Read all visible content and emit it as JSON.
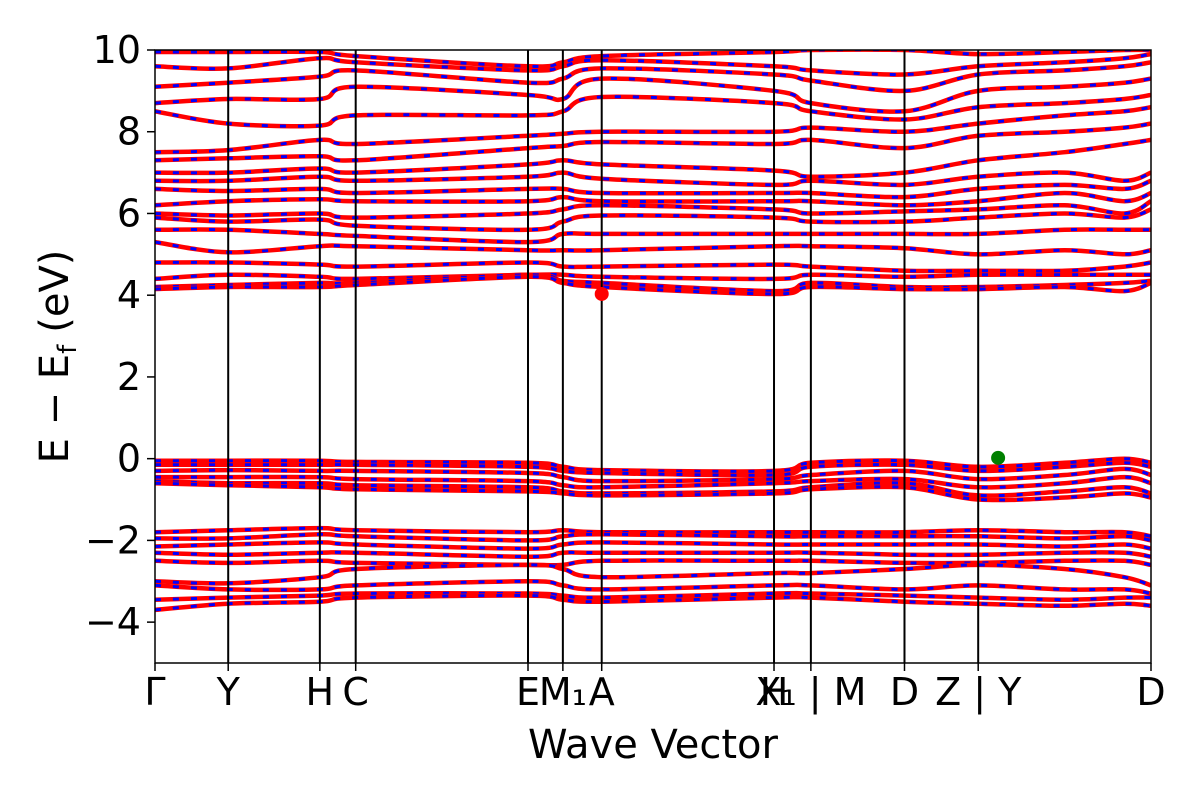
{
  "chart_data": {
    "type": "line",
    "xlabel": "Wave Vector",
    "ylabel_main": "E − E",
    "ylabel_sub": "f",
    "ylabel_unit": "(eV)",
    "ylim": [
      -5,
      10
    ],
    "yticks": [
      -4,
      -2,
      0,
      2,
      4,
      6,
      8,
      10
    ],
    "ytick_labels": [
      "−4",
      "−2",
      "0",
      "2",
      "4",
      "6",
      "8",
      "10"
    ],
    "xlim": [
      0,
      1
    ],
    "kpoints": [
      {
        "label": "Γ",
        "x": 0.0
      },
      {
        "label": "Y",
        "x": 0.0735
      },
      {
        "label": "H",
        "x": 0.1655
      },
      {
        "label": "C",
        "x": 0.2015
      },
      {
        "label": "E",
        "x": 0.3745
      },
      {
        "label": "M₁",
        "x": 0.4095
      },
      {
        "label": "A",
        "x": 0.4485
      },
      {
        "label": "H",
        "x": 0.6215
      },
      {
        "label": "X₁ | M",
        "x": 0.6585
      },
      {
        "label": "D",
        "x": 0.7525
      },
      {
        "label": "Z | Y",
        "x": 0.8265
      },
      {
        "label": "D",
        "x": 1.0
      }
    ],
    "series_colors": {
      "up": "#ff0000",
      "down": "#0000ff"
    },
    "markers": [
      {
        "x": 0.4485,
        "y": 4.03,
        "color": "#ff0000"
      },
      {
        "x": 0.8465,
        "y": 0.02,
        "color": "#008000"
      }
    ],
    "bands": [
      [
        9.95,
        9.95,
        9.95,
        9.85,
        9.6,
        9.7,
        9.85,
        9.95,
        10.0,
        10.0,
        9.9,
        9.95,
        10.0,
        10.0
      ],
      [
        9.6,
        9.55,
        9.8,
        9.7,
        9.5,
        9.6,
        9.75,
        9.6,
        9.5,
        9.4,
        9.6,
        9.7,
        9.8,
        9.9
      ],
      [
        9.1,
        9.2,
        9.35,
        9.5,
        9.2,
        9.3,
        9.55,
        9.4,
        9.25,
        9.0,
        9.4,
        9.5,
        9.6,
        9.7
      ],
      [
        8.7,
        8.8,
        8.8,
        9.1,
        8.9,
        8.8,
        9.3,
        9.0,
        8.7,
        8.5,
        9.0,
        9.1,
        9.2,
        9.3
      ],
      [
        8.5,
        8.2,
        8.15,
        8.4,
        8.4,
        8.5,
        8.85,
        8.7,
        8.5,
        8.3,
        8.6,
        8.7,
        8.8,
        8.9
      ],
      [
        7.5,
        7.55,
        7.8,
        7.7,
        7.9,
        7.95,
        8.0,
        8.0,
        8.1,
        8.0,
        8.2,
        8.4,
        8.5,
        8.6
      ],
      [
        7.3,
        7.35,
        7.4,
        7.3,
        7.6,
        7.65,
        7.75,
        7.7,
        7.8,
        7.6,
        7.9,
        8.0,
        8.1,
        8.2
      ],
      [
        7.0,
        7.0,
        7.1,
        7.0,
        7.2,
        7.3,
        7.2,
        7.05,
        6.9,
        7.0,
        7.3,
        7.5,
        7.7,
        7.8
      ],
      [
        6.8,
        6.8,
        6.9,
        6.8,
        6.9,
        7.0,
        6.85,
        6.7,
        6.8,
        6.7,
        6.9,
        7.0,
        6.8,
        7.0
      ],
      [
        6.6,
        6.55,
        6.6,
        6.5,
        6.6,
        6.6,
        6.5,
        6.5,
        6.5,
        6.4,
        6.6,
        6.7,
        6.6,
        6.8
      ],
      [
        6.2,
        6.3,
        6.35,
        6.3,
        6.3,
        6.4,
        6.3,
        6.3,
        6.3,
        6.2,
        6.3,
        6.5,
        6.3,
        6.5
      ],
      [
        6.0,
        5.95,
        6.0,
        5.9,
        6.0,
        6.1,
        6.2,
        6.1,
        6.0,
        6.05,
        6.1,
        6.2,
        6.0,
        6.3
      ],
      [
        5.9,
        5.8,
        5.85,
        5.7,
        5.6,
        5.8,
        5.95,
        5.9,
        5.8,
        5.8,
        5.9,
        6.0,
        5.9,
        6.1
      ],
      [
        5.6,
        5.6,
        5.5,
        5.45,
        5.3,
        5.5,
        5.5,
        5.5,
        5.5,
        5.5,
        5.5,
        5.6,
        5.6,
        5.6
      ],
      [
        5.3,
        5.05,
        5.2,
        5.2,
        5.1,
        5.1,
        5.1,
        5.2,
        5.2,
        5.15,
        5.0,
        5.1,
        5.0,
        5.1
      ],
      [
        4.8,
        4.8,
        4.75,
        4.7,
        4.8,
        4.7,
        4.7,
        4.75,
        4.7,
        4.6,
        4.6,
        4.6,
        4.7,
        4.8
      ],
      [
        4.4,
        4.5,
        4.45,
        4.4,
        4.5,
        4.5,
        4.45,
        4.4,
        4.5,
        4.45,
        4.5,
        4.5,
        4.5,
        4.5
      ],
      [
        4.2,
        4.25,
        4.3,
        4.3,
        4.5,
        4.35,
        4.3,
        4.1,
        4.3,
        4.2,
        4.2,
        4.25,
        4.3,
        4.35
      ],
      [
        4.15,
        4.2,
        4.2,
        4.25,
        4.45,
        4.3,
        4.2,
        4.03,
        4.2,
        4.15,
        4.15,
        4.2,
        4.1,
        4.3
      ],
      [
        -0.05,
        -0.05,
        -0.05,
        -0.08,
        -0.1,
        -0.2,
        -0.28,
        -0.3,
        -0.1,
        -0.05,
        -0.2,
        -0.1,
        -0.0,
        -0.1
      ],
      [
        -0.15,
        -0.15,
        -0.15,
        -0.15,
        -0.2,
        -0.3,
        -0.35,
        -0.4,
        -0.2,
        -0.15,
        -0.3,
        -0.2,
        -0.1,
        -0.2
      ],
      [
        -0.3,
        -0.28,
        -0.3,
        -0.3,
        -0.35,
        -0.45,
        -0.55,
        -0.5,
        -0.4,
        -0.3,
        -0.5,
        -0.4,
        -0.25,
        -0.4
      ],
      [
        -0.45,
        -0.45,
        -0.45,
        -0.5,
        -0.55,
        -0.65,
        -0.7,
        -0.6,
        -0.55,
        -0.5,
        -0.7,
        -0.6,
        -0.45,
        -0.6
      ],
      [
        -0.55,
        -0.6,
        -0.6,
        -0.65,
        -0.7,
        -0.8,
        -0.85,
        -0.8,
        -0.7,
        -0.6,
        -0.9,
        -0.8,
        -0.7,
        -0.85
      ],
      [
        -0.6,
        -0.65,
        -0.7,
        -0.75,
        -0.8,
        -0.85,
        -0.9,
        -0.85,
        -0.75,
        -0.7,
        -1.0,
        -0.95,
        -0.85,
        -0.95
      ],
      [
        -1.8,
        -1.75,
        -1.7,
        -1.75,
        -1.8,
        -1.75,
        -1.8,
        -1.8,
        -1.8,
        -1.8,
        -1.75,
        -1.8,
        -1.8,
        -1.9
      ],
      [
        -1.95,
        -1.95,
        -1.85,
        -1.9,
        -2.0,
        -1.9,
        -1.85,
        -1.9,
        -1.9,
        -1.9,
        -1.9,
        -1.95,
        -1.9,
        -2.0
      ],
      [
        -2.15,
        -2.1,
        -2.05,
        -2.1,
        -2.2,
        -2.1,
        -2.05,
        -2.1,
        -2.1,
        -2.1,
        -2.1,
        -2.15,
        -2.1,
        -2.2
      ],
      [
        -2.3,
        -2.35,
        -2.3,
        -2.3,
        -2.4,
        -2.3,
        -2.3,
        -2.3,
        -2.3,
        -2.35,
        -2.35,
        -2.3,
        -2.3,
        -2.4
      ],
      [
        -2.5,
        -2.55,
        -2.5,
        -2.55,
        -2.6,
        -2.6,
        -2.5,
        -2.5,
        -2.5,
        -2.55,
        -2.55,
        -2.5,
        -2.5,
        -2.6
      ],
      [
        -3.0,
        -3.05,
        -2.9,
        -2.7,
        -2.6,
        -2.7,
        -2.9,
        -2.8,
        -2.8,
        -2.7,
        -2.6,
        -2.7,
        -2.9,
        -3.1
      ],
      [
        -3.1,
        -3.2,
        -3.2,
        -3.1,
        -3.0,
        -3.1,
        -3.2,
        -3.1,
        -3.1,
        -3.2,
        -3.1,
        -3.2,
        -3.2,
        -3.3
      ],
      [
        -3.45,
        -3.4,
        -3.35,
        -3.3,
        -3.3,
        -3.35,
        -3.4,
        -3.3,
        -3.3,
        -3.35,
        -3.4,
        -3.45,
        -3.4,
        -3.4
      ],
      [
        -3.7,
        -3.55,
        -3.5,
        -3.4,
        -3.35,
        -3.45,
        -3.5,
        -3.4,
        -3.4,
        -3.5,
        -3.55,
        -3.6,
        -3.55,
        -3.6
      ]
    ]
  }
}
